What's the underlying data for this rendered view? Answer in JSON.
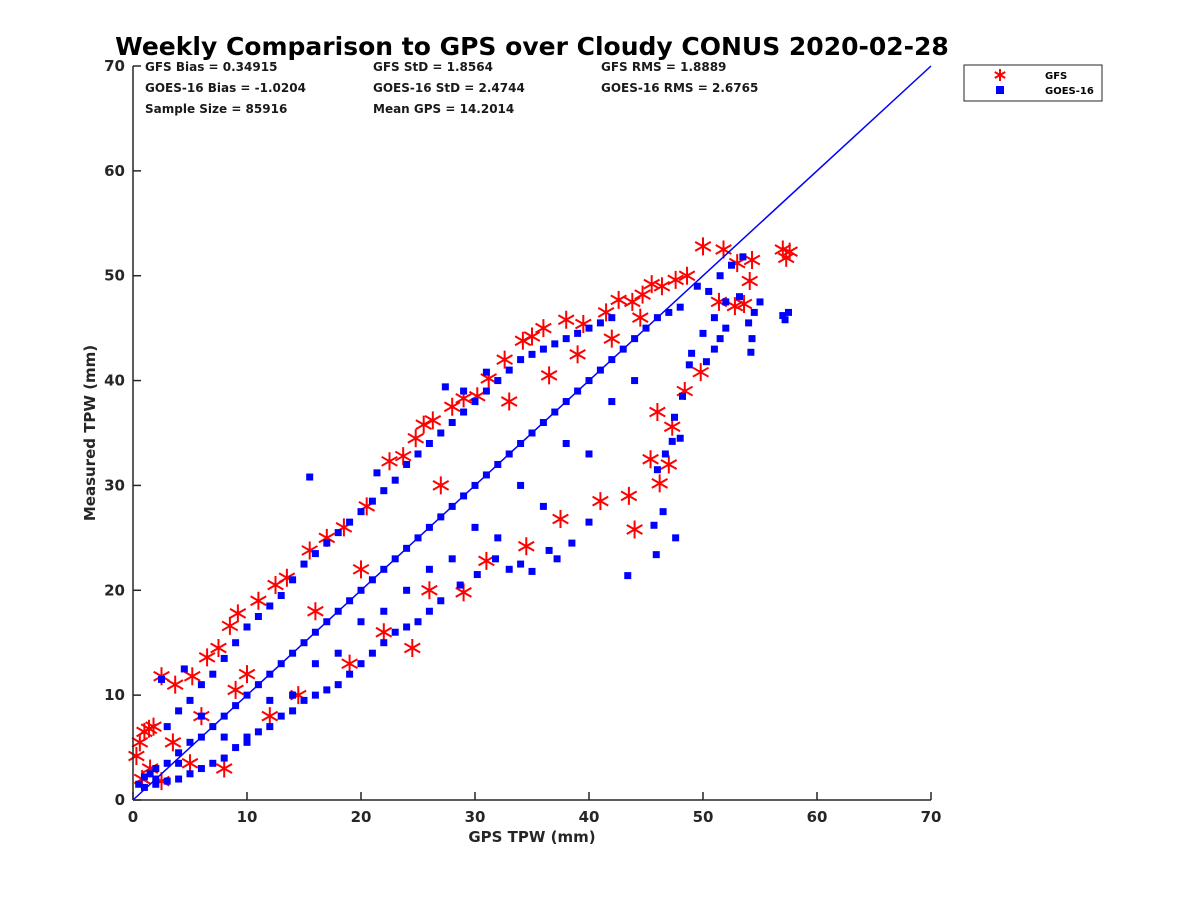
{
  "chart_data": {
    "type": "scatter",
    "title": "Weekly Comparison to GPS over Cloudy CONUS 2020-02-28",
    "xlabel": "GPS TPW (mm)",
    "ylabel": "Measured TPW (mm)",
    "xlim": [
      0,
      70
    ],
    "ylim": [
      0,
      70
    ],
    "xticks": [
      0,
      10,
      20,
      30,
      40,
      50,
      60,
      70
    ],
    "yticks": [
      0,
      10,
      20,
      30,
      40,
      50,
      60,
      70
    ],
    "grid": false,
    "legend_position": "outside-top-right",
    "stats": [
      [
        "GFS Bias = 0.34915",
        "GFS StD = 1.8564",
        "GFS RMS = 1.8889"
      ],
      [
        "GOES-16 Bias = -1.0204",
        "GOES-16 StD = 2.4744",
        "GOES-16 RMS = 2.6765"
      ],
      [
        "Sample Size = 85916",
        "Mean GPS = 14.2014",
        ""
      ]
    ],
    "reference_line": {
      "name": "1:1",
      "color": "#0000ff",
      "points": [
        [
          0,
          0
        ],
        [
          70,
          70
        ]
      ]
    },
    "series": [
      {
        "name": "GFS",
        "marker": "asterisk",
        "color": "#ff0000",
        "points": [
          [
            0.3,
            4.2
          ],
          [
            0.6,
            5.5
          ],
          [
            1.0,
            6.5
          ],
          [
            1.4,
            6.8
          ],
          [
            1.8,
            7.0
          ],
          [
            2.5,
            11.8
          ],
          [
            3.7,
            11.0
          ],
          [
            5.2,
            11.8
          ],
          [
            6.5,
            13.6
          ],
          [
            7.5,
            14.5
          ],
          [
            8.5,
            16.6
          ],
          [
            9.2,
            17.8
          ],
          [
            11.0,
            19.0
          ],
          [
            12.5,
            20.5
          ],
          [
            13.5,
            21.2
          ],
          [
            15.5,
            23.8
          ],
          [
            17.0,
            25.0
          ],
          [
            18.5,
            26.0
          ],
          [
            20.5,
            28.0
          ],
          [
            22.5,
            32.3
          ],
          [
            23.7,
            32.8
          ],
          [
            24.8,
            34.5
          ],
          [
            25.5,
            35.8
          ],
          [
            26.3,
            36.2
          ],
          [
            28.0,
            37.5
          ],
          [
            29.0,
            38.3
          ],
          [
            30.2,
            38.5
          ],
          [
            31.2,
            40.2
          ],
          [
            32.6,
            42.0
          ],
          [
            34.2,
            43.8
          ],
          [
            35.0,
            44.2
          ],
          [
            36.0,
            45.0
          ],
          [
            38.0,
            45.8
          ],
          [
            39.5,
            45.4
          ],
          [
            41.5,
            46.5
          ],
          [
            42.6,
            47.7
          ],
          [
            43.8,
            47.5
          ],
          [
            44.7,
            48.2
          ],
          [
            45.5,
            49.2
          ],
          [
            46.4,
            49.0
          ],
          [
            47.6,
            49.6
          ],
          [
            48.6,
            50.0
          ],
          [
            50.0,
            52.8
          ],
          [
            51.8,
            52.5
          ],
          [
            53.0,
            51.2
          ],
          [
            54.3,
            51.5
          ],
          [
            57.0,
            52.5
          ],
          [
            57.3,
            51.7
          ],
          [
            57.6,
            52.3
          ],
          [
            51.4,
            47.5
          ],
          [
            52.8,
            47.1
          ],
          [
            53.6,
            47.3
          ],
          [
            54.1,
            49.5
          ],
          [
            49.8,
            40.8
          ],
          [
            47.3,
            35.6
          ],
          [
            47.0,
            32.0
          ],
          [
            46.2,
            30.2
          ],
          [
            43.5,
            29.0
          ],
          [
            45.4,
            32.5
          ],
          [
            46.0,
            37.0
          ],
          [
            48.4,
            39.0
          ],
          [
            44.0,
            25.8
          ],
          [
            29.0,
            19.8
          ],
          [
            24.5,
            14.5
          ],
          [
            8.0,
            3.0
          ],
          [
            2.5,
            1.8
          ],
          [
            5.0,
            3.5
          ],
          [
            12.0,
            8.0
          ],
          [
            14.5,
            10.0
          ],
          [
            19.0,
            13.0
          ],
          [
            22.0,
            16.0
          ],
          [
            26.0,
            20.0
          ],
          [
            31.0,
            22.8
          ],
          [
            34.5,
            24.2
          ],
          [
            37.5,
            26.8
          ],
          [
            41.0,
            28.5
          ],
          [
            10.0,
            12.0
          ],
          [
            16.0,
            18.0
          ],
          [
            20.0,
            22.0
          ],
          [
            27.0,
            30.0
          ],
          [
            33.0,
            38.0
          ],
          [
            36.5,
            40.5
          ],
          [
            39.0,
            42.5
          ],
          [
            42.0,
            44.0
          ],
          [
            44.5,
            46.0
          ],
          [
            6.0,
            8.0
          ],
          [
            3.5,
            5.5
          ],
          [
            1.5,
            3.0
          ],
          [
            0.8,
            2.0
          ],
          [
            9.0,
            10.5
          ]
        ]
      },
      {
        "name": "GOES-16",
        "marker": "square",
        "color": "#0000ff",
        "points": [
          [
            0.5,
            1.5
          ],
          [
            1.0,
            2.2
          ],
          [
            1.5,
            2.5
          ],
          [
            2.0,
            3.0
          ],
          [
            3.0,
            3.5
          ],
          [
            4.0,
            4.5
          ],
          [
            5.0,
            5.5
          ],
          [
            6.0,
            6.0
          ],
          [
            7.0,
            7.0
          ],
          [
            8.0,
            8.0
          ],
          [
            9.0,
            9.0
          ],
          [
            10.0,
            10.0
          ],
          [
            11.0,
            11.0
          ],
          [
            12.0,
            12.0
          ],
          [
            13.0,
            13.0
          ],
          [
            14.0,
            14.0
          ],
          [
            15.0,
            15.0
          ],
          [
            16.0,
            16.0
          ],
          [
            17.0,
            17.0
          ],
          [
            18.0,
            18.0
          ],
          [
            19.0,
            19.0
          ],
          [
            20.0,
            20.0
          ],
          [
            21.0,
            21.0
          ],
          [
            22.0,
            22.0
          ],
          [
            23.0,
            23.0
          ],
          [
            24.0,
            24.0
          ],
          [
            25.0,
            25.0
          ],
          [
            26.0,
            26.0
          ],
          [
            27.0,
            27.0
          ],
          [
            28.0,
            28.0
          ],
          [
            29.0,
            29.0
          ],
          [
            30.0,
            30.0
          ],
          [
            31.0,
            31.0
          ],
          [
            32.0,
            32.0
          ],
          [
            33.0,
            33.0
          ],
          [
            34.0,
            34.0
          ],
          [
            35.0,
            35.0
          ],
          [
            36.0,
            36.0
          ],
          [
            37.0,
            37.0
          ],
          [
            38.0,
            38.0
          ],
          [
            39.0,
            39.0
          ],
          [
            40.0,
            40.0
          ],
          [
            41.0,
            41.0
          ],
          [
            42.0,
            42.0
          ],
          [
            43.0,
            43.0
          ],
          [
            44.0,
            44.0
          ],
          [
            45.0,
            45.0
          ],
          [
            46.0,
            46.0
          ],
          [
            47.0,
            46.5
          ],
          [
            48.0,
            47.0
          ],
          [
            49.5,
            49.0
          ],
          [
            50.5,
            48.5
          ],
          [
            51.5,
            50.0
          ],
          [
            52.5,
            51.0
          ],
          [
            53.5,
            51.8
          ],
          [
            52.0,
            47.5
          ],
          [
            53.2,
            48.0
          ],
          [
            54.0,
            45.5
          ],
          [
            54.5,
            46.5
          ],
          [
            51.0,
            46.0
          ],
          [
            50.0,
            44.5
          ],
          [
            51.0,
            43.0
          ],
          [
            51.5,
            44.0
          ],
          [
            50.3,
            41.8
          ],
          [
            49.0,
            42.6
          ],
          [
            48.8,
            41.5
          ],
          [
            48.2,
            38.5
          ],
          [
            47.5,
            36.5
          ],
          [
            48.0,
            34.5
          ],
          [
            47.3,
            34.2
          ],
          [
            46.7,
            33.0
          ],
          [
            46.0,
            31.5
          ],
          [
            46.5,
            27.5
          ],
          [
            45.7,
            26.2
          ],
          [
            47.6,
            25.0
          ],
          [
            45.9,
            23.4
          ],
          [
            43.4,
            21.4
          ],
          [
            40.0,
            26.5
          ],
          [
            38.5,
            24.5
          ],
          [
            37.2,
            23.0
          ],
          [
            36.5,
            23.8
          ],
          [
            35.0,
            21.8
          ],
          [
            34.0,
            22.5
          ],
          [
            33.0,
            22.0
          ],
          [
            31.8,
            23.0
          ],
          [
            30.2,
            21.5
          ],
          [
            28.7,
            20.5
          ],
          [
            27.0,
            19.0
          ],
          [
            26.0,
            18.0
          ],
          [
            25.0,
            17.0
          ],
          [
            24.0,
            16.5
          ],
          [
            23.0,
            16.0
          ],
          [
            22.0,
            15.0
          ],
          [
            21.0,
            14.0
          ],
          [
            20.0,
            13.0
          ],
          [
            19.0,
            12.0
          ],
          [
            18.0,
            11.0
          ],
          [
            17.0,
            10.5
          ],
          [
            16.0,
            10.0
          ],
          [
            15.0,
            9.5
          ],
          [
            14.0,
            8.5
          ],
          [
            13.0,
            8.0
          ],
          [
            12.0,
            7.0
          ],
          [
            11.0,
            6.5
          ],
          [
            10.0,
            5.5
          ],
          [
            9.0,
            5.0
          ],
          [
            8.0,
            4.0
          ],
          [
            7.0,
            3.5
          ],
          [
            6.0,
            3.0
          ],
          [
            5.0,
            2.5
          ],
          [
            4.0,
            2.0
          ],
          [
            3.0,
            1.8
          ],
          [
            2.0,
            1.5
          ],
          [
            1.0,
            1.2
          ],
          [
            3.0,
            7.0
          ],
          [
            4.0,
            8.5
          ],
          [
            5.0,
            9.5
          ],
          [
            6.0,
            11.0
          ],
          [
            7.0,
            12.0
          ],
          [
            8.0,
            13.5
          ],
          [
            9.0,
            15.0
          ],
          [
            10.0,
            16.5
          ],
          [
            11.0,
            17.5
          ],
          [
            12.0,
            18.5
          ],
          [
            13.0,
            19.5
          ],
          [
            14.0,
            21.0
          ],
          [
            15.0,
            22.5
          ],
          [
            16.0,
            23.5
          ],
          [
            17.0,
            24.5
          ],
          [
            18.0,
            25.5
          ],
          [
            19.0,
            26.5
          ],
          [
            20.0,
            27.5
          ],
          [
            21.0,
            28.5
          ],
          [
            22.0,
            29.5
          ],
          [
            23.0,
            30.5
          ],
          [
            24.0,
            32.0
          ],
          [
            25.0,
            33.0
          ],
          [
            26.0,
            34.0
          ],
          [
            27.0,
            35.0
          ],
          [
            28.0,
            36.0
          ],
          [
            29.0,
            37.0
          ],
          [
            30.0,
            38.0
          ],
          [
            31.0,
            39.0
          ],
          [
            32.0,
            40.0
          ],
          [
            33.0,
            41.0
          ],
          [
            34.0,
            42.0
          ],
          [
            35.0,
            42.5
          ],
          [
            36.0,
            43.0
          ],
          [
            37.0,
            43.5
          ],
          [
            38.0,
            44.0
          ],
          [
            39.0,
            44.5
          ],
          [
            40.0,
            45.0
          ],
          [
            41.0,
            45.5
          ],
          [
            42.0,
            46.0
          ],
          [
            15.5,
            30.8
          ],
          [
            21.4,
            31.2
          ],
          [
            27.4,
            39.4
          ],
          [
            29.0,
            39.0
          ],
          [
            31.0,
            40.8
          ],
          [
            4.5,
            12.5
          ],
          [
            2.5,
            11.5
          ],
          [
            6.0,
            8.0
          ],
          [
            10.0,
            6.0
          ],
          [
            14.0,
            10.0
          ],
          [
            18.0,
            14.0
          ],
          [
            22.0,
            18.0
          ],
          [
            26.0,
            22.0
          ],
          [
            30.0,
            26.0
          ],
          [
            34.0,
            30.0
          ],
          [
            38.0,
            34.0
          ],
          [
            42.0,
            38.0
          ],
          [
            44.0,
            40.0
          ],
          [
            40.0,
            33.0
          ],
          [
            36.0,
            28.0
          ],
          [
            32.0,
            25.0
          ],
          [
            28.0,
            23.0
          ],
          [
            24.0,
            20.0
          ],
          [
            20.0,
            17.0
          ],
          [
            16.0,
            13.0
          ],
          [
            12.0,
            9.5
          ],
          [
            8.0,
            6.0
          ],
          [
            4.0,
            3.5
          ],
          [
            2.0,
            2.0
          ],
          [
            57.0,
            46.2
          ],
          [
            57.5,
            46.5
          ],
          [
            57.2,
            45.8
          ],
          [
            54.2,
            42.7
          ],
          [
            54.3,
            44.0
          ],
          [
            52.0,
            45.0
          ],
          [
            55.0,
            47.5
          ]
        ]
      }
    ]
  }
}
